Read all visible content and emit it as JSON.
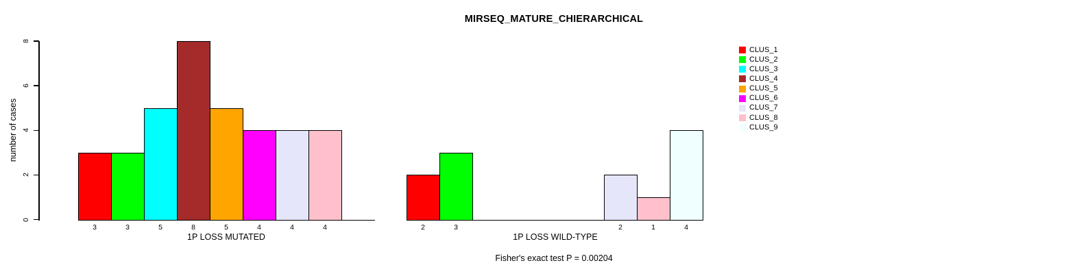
{
  "title": "MIRSEQ_MATURE_CHIERARCHICAL",
  "footer": {
    "text": "Fisher's exact test P = 0.00204"
  },
  "legend": {
    "items": [
      {
        "label": "CLUS_1",
        "color": "#FF0000"
      },
      {
        "label": "CLUS_2",
        "color": "#00FF00"
      },
      {
        "label": "CLUS_3",
        "color": "#00FFFF"
      },
      {
        "label": "CLUS_4",
        "color": "#A52A2A"
      },
      {
        "label": "CLUS_5",
        "color": "#FFA500"
      },
      {
        "label": "CLUS_6",
        "color": "#FF00FF"
      },
      {
        "label": "CLUS_7",
        "color": "#E6E6FA"
      },
      {
        "label": "CLUS_8",
        "color": "#FFC0CB"
      },
      {
        "label": "CLUS_9",
        "color": "#F0FFFF"
      }
    ]
  },
  "chart_data": {
    "type": "bar",
    "title": "MIRSEQ_MATURE_CHIERARCHICAL",
    "ylabel": "number of cases",
    "ylim": [
      0,
      8
    ],
    "yticks": [
      0,
      2,
      4,
      6,
      8
    ],
    "grid": false,
    "legend_position": "top-right",
    "categories": [
      "CLUS_1",
      "CLUS_2",
      "CLUS_3",
      "CLUS_4",
      "CLUS_5",
      "CLUS_6",
      "CLUS_7",
      "CLUS_8",
      "CLUS_9"
    ],
    "palette": [
      "#FF0000",
      "#00FF00",
      "#00FFFF",
      "#A52A2A",
      "#FFA500",
      "#FF00FF",
      "#E6E6FA",
      "#FFC0CB",
      "#F0FFFF"
    ],
    "bar_value_labels": true,
    "groups": [
      {
        "xlabel": "1P LOSS MUTATED",
        "values": [
          3,
          3,
          5,
          8,
          5,
          4,
          4,
          4,
          0
        ]
      },
      {
        "xlabel": "1P LOSS WILD-TYPE",
        "values": [
          2,
          3,
          0,
          0,
          0,
          0,
          2,
          1,
          4
        ]
      }
    ],
    "annotation": "Fisher's exact test P = 0.00204"
  }
}
